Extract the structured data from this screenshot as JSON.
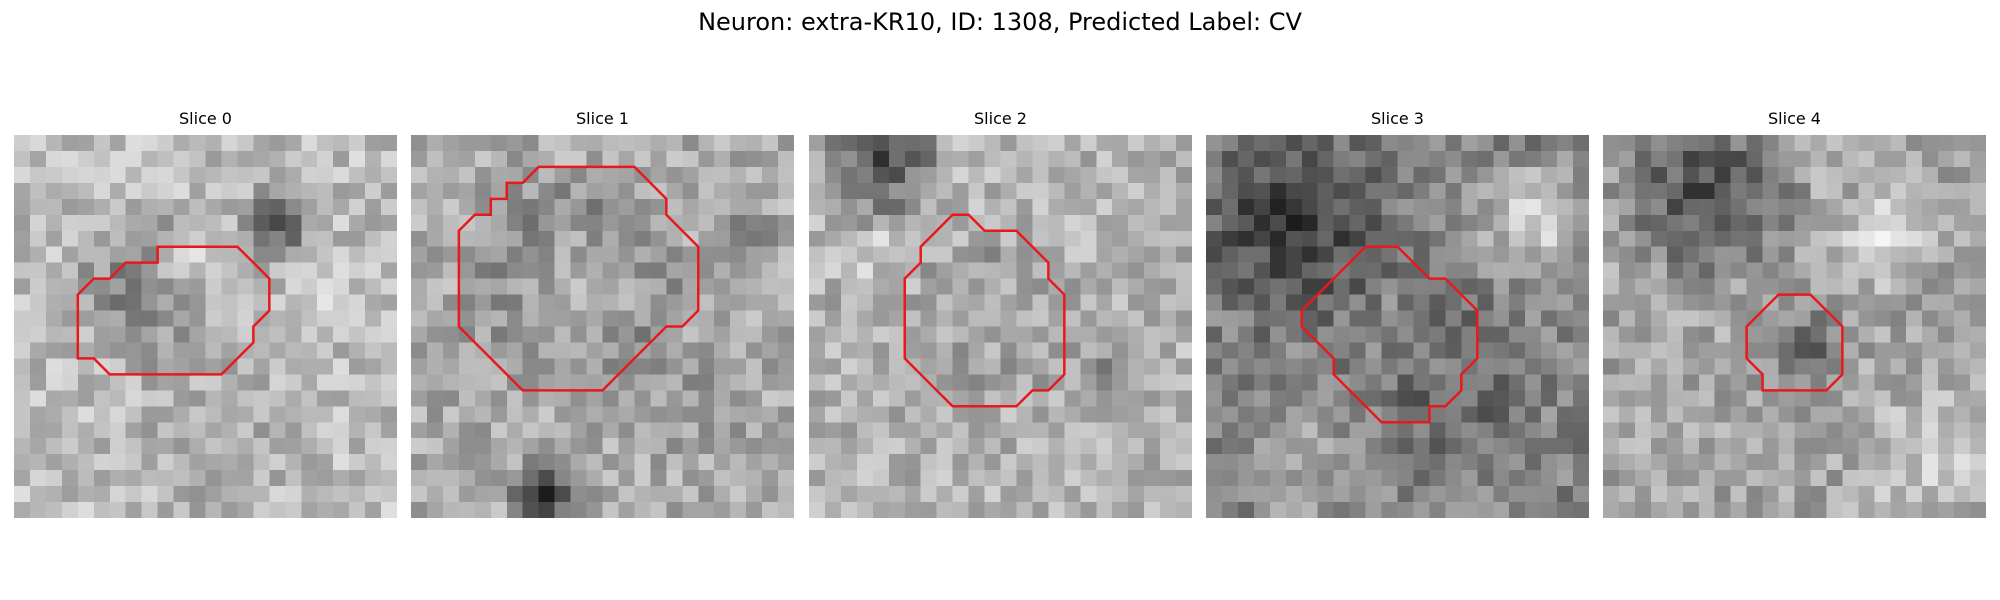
{
  "title": "Neuron: extra-KR10, ID: 1308, Predicted Label: CV",
  "colors": {
    "contour": "#e8191c",
    "background": "#ffffff"
  },
  "panels": [
    {
      "title": "Slice 0",
      "contour": [
        [
          8,
          8
        ],
        [
          9,
          8
        ],
        [
          9,
          7
        ],
        [
          14,
          7
        ],
        [
          15,
          8
        ],
        [
          16,
          9
        ],
        [
          16,
          11
        ],
        [
          15,
          12
        ],
        [
          15,
          13
        ],
        [
          14,
          14
        ],
        [
          13,
          15
        ],
        [
          11,
          15
        ],
        [
          6,
          15
        ],
        [
          5,
          14
        ],
        [
          4,
          14
        ],
        [
          4,
          13
        ],
        [
          4,
          10
        ],
        [
          5,
          9
        ],
        [
          6,
          9
        ],
        [
          7,
          8
        ]
      ]
    },
    {
      "title": "Slice 1",
      "contour": [
        [
          5,
          4
        ],
        [
          6,
          4
        ],
        [
          6,
          3
        ],
        [
          7,
          3
        ],
        [
          8,
          2
        ],
        [
          14,
          2
        ],
        [
          15,
          3
        ],
        [
          16,
          4
        ],
        [
          16,
          5
        ],
        [
          17,
          6
        ],
        [
          18,
          7
        ],
        [
          18,
          8
        ],
        [
          18,
          9
        ],
        [
          18,
          10
        ],
        [
          18,
          11
        ],
        [
          17,
          12
        ],
        [
          16,
          12
        ],
        [
          15,
          13
        ],
        [
          14,
          14
        ],
        [
          13,
          15
        ],
        [
          12,
          16
        ],
        [
          10,
          16
        ],
        [
          7,
          16
        ],
        [
          6,
          15
        ],
        [
          5,
          14
        ],
        [
          4,
          13
        ],
        [
          3,
          12
        ],
        [
          3,
          11
        ],
        [
          3,
          8
        ],
        [
          3,
          6
        ],
        [
          4,
          5
        ],
        [
          5,
          5
        ]
      ]
    },
    {
      "title": "Slice 2",
      "contour": [
        [
          7,
          7
        ],
        [
          8,
          6
        ],
        [
          9,
          5
        ],
        [
          10,
          5
        ],
        [
          11,
          6
        ],
        [
          13,
          6
        ],
        [
          14,
          7
        ],
        [
          15,
          8
        ],
        [
          15,
          9
        ],
        [
          16,
          10
        ],
        [
          16,
          11
        ],
        [
          16,
          12
        ],
        [
          16,
          13
        ],
        [
          16,
          15
        ],
        [
          15,
          16
        ],
        [
          14,
          16
        ],
        [
          13,
          17
        ],
        [
          11,
          17
        ],
        [
          9,
          17
        ],
        [
          8,
          16
        ],
        [
          7,
          15
        ],
        [
          6,
          14
        ],
        [
          6,
          13
        ],
        [
          6,
          9
        ],
        [
          7,
          8
        ]
      ]
    },
    {
      "title": "Slice 3",
      "contour": [
        [
          10,
          7
        ],
        [
          11,
          7
        ],
        [
          12,
          7
        ],
        [
          13,
          8
        ],
        [
          14,
          9
        ],
        [
          15,
          9
        ],
        [
          16,
          10
        ],
        [
          17,
          11
        ],
        [
          17,
          12
        ],
        [
          17,
          14
        ],
        [
          16,
          15
        ],
        [
          16,
          16
        ],
        [
          15,
          17
        ],
        [
          14,
          17
        ],
        [
          14,
          18
        ],
        [
          13,
          18
        ],
        [
          12,
          18
        ],
        [
          11,
          18
        ],
        [
          10,
          17
        ],
        [
          9,
          16
        ],
        [
          8,
          15
        ],
        [
          8,
          14
        ],
        [
          7,
          13
        ],
        [
          6,
          12
        ],
        [
          6,
          11
        ],
        [
          7,
          10
        ],
        [
          8,
          9
        ],
        [
          9,
          8
        ]
      ]
    },
    {
      "title": "Slice 4",
      "contour": [
        [
          10,
          11
        ],
        [
          11,
          10
        ],
        [
          11,
          10
        ],
        [
          13,
          10
        ],
        [
          14,
          11
        ],
        [
          15,
          12
        ],
        [
          15,
          13
        ],
        [
          15,
          14
        ],
        [
          15,
          15
        ],
        [
          14,
          16
        ],
        [
          13,
          16
        ],
        [
          11,
          16
        ],
        [
          10,
          16
        ],
        [
          10,
          15
        ],
        [
          9,
          14
        ],
        [
          9,
          13
        ],
        [
          9,
          12
        ]
      ]
    }
  ]
}
